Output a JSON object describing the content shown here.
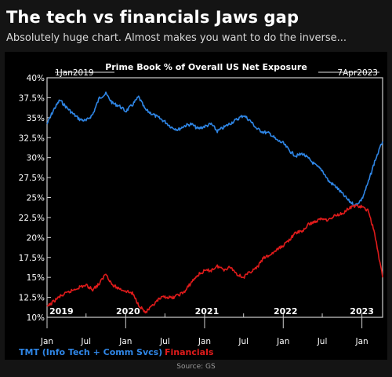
{
  "header": {
    "headline": "The tech vs financials Jaws gap",
    "subtitle": "Absolutely huge chart. Almost makes you want to do the inverse..."
  },
  "footer": {
    "source": "Source: GS"
  },
  "chart_data": {
    "type": "line",
    "title": "Prime Book % of Overall US Net Exposure",
    "start_label": "1Jan2019",
    "end_label": "7Apr2023",
    "x_range": [
      "2019-01-01",
      "2023-04-07"
    ],
    "ylim": [
      10,
      40
    ],
    "y_ticks": [
      "40%",
      "37.5%",
      "35%",
      "32.5%",
      "30%",
      "27.5%",
      "25%",
      "22.5%",
      "20%",
      "17.5%",
      "15%",
      "12.5%",
      "10%"
    ],
    "x_month_ticks": [
      {
        "date": "2019-01-01",
        "label": "Jan"
      },
      {
        "date": "2019-07-01",
        "label": "Jul"
      },
      {
        "date": "2020-01-01",
        "label": "Jan"
      },
      {
        "date": "2020-07-01",
        "label": "Jul"
      },
      {
        "date": "2021-01-01",
        "label": "Jan"
      },
      {
        "date": "2021-07-01",
        "label": "Jul"
      },
      {
        "date": "2022-01-01",
        "label": "Jan"
      },
      {
        "date": "2022-07-01",
        "label": "Jul"
      },
      {
        "date": "2023-01-01",
        "label": "Jan"
      }
    ],
    "year_labels": [
      {
        "date": "2019-01-01",
        "label": "2019"
      },
      {
        "date": "2020-01-01",
        "label": "2020"
      },
      {
        "date": "2021-01-01",
        "label": "2021"
      },
      {
        "date": "2022-01-01",
        "label": "2022"
      },
      {
        "date": "2023-01-01",
        "label": "2023"
      }
    ],
    "legend_position": "bottom-left",
    "series": [
      {
        "name": "TMT (Info Tech + Comm Svcs)",
        "color": "#2f86e6",
        "points": [
          [
            "2019-01-01",
            34.2
          ],
          [
            "2019-02-01",
            36.0
          ],
          [
            "2019-03-01",
            37.2
          ],
          [
            "2019-04-01",
            36.3
          ],
          [
            "2019-05-01",
            35.5
          ],
          [
            "2019-06-01",
            34.8
          ],
          [
            "2019-07-01",
            34.6
          ],
          [
            "2019-08-01",
            35.4
          ],
          [
            "2019-09-01",
            37.5
          ],
          [
            "2019-10-01",
            38.0
          ],
          [
            "2019-11-01",
            36.8
          ],
          [
            "2019-12-01",
            36.5
          ],
          [
            "2020-01-01",
            35.8
          ],
          [
            "2020-02-01",
            36.6
          ],
          [
            "2020-03-01",
            37.6
          ],
          [
            "2020-04-01",
            36.0
          ],
          [
            "2020-05-01",
            35.5
          ],
          [
            "2020-06-01",
            35.0
          ],
          [
            "2020-07-01",
            34.5
          ],
          [
            "2020-08-01",
            33.8
          ],
          [
            "2020-09-01",
            33.5
          ],
          [
            "2020-10-01",
            34.0
          ],
          [
            "2020-11-01",
            34.2
          ],
          [
            "2020-12-01",
            33.6
          ],
          [
            "2021-01-01",
            33.9
          ],
          [
            "2021-02-01",
            34.2
          ],
          [
            "2021-03-01",
            33.3
          ],
          [
            "2021-04-01",
            33.8
          ],
          [
            "2021-05-01",
            34.3
          ],
          [
            "2021-06-01",
            34.8
          ],
          [
            "2021-07-01",
            35.3
          ],
          [
            "2021-08-01",
            34.6
          ],
          [
            "2021-09-01",
            33.6
          ],
          [
            "2021-10-01",
            33.2
          ],
          [
            "2021-11-01",
            33.0
          ],
          [
            "2021-12-01",
            32.2
          ],
          [
            "2022-01-01",
            31.8
          ],
          [
            "2022-02-01",
            30.8
          ],
          [
            "2022-03-01",
            30.2
          ],
          [
            "2022-04-01",
            30.5
          ],
          [
            "2022-05-01",
            29.8
          ],
          [
            "2022-06-01",
            29.0
          ],
          [
            "2022-07-01",
            28.4
          ],
          [
            "2022-08-01",
            27.0
          ],
          [
            "2022-09-01",
            26.4
          ],
          [
            "2022-10-01",
            25.5
          ],
          [
            "2022-11-01",
            24.6
          ],
          [
            "2022-12-01",
            24.0
          ],
          [
            "2023-01-01",
            24.8
          ],
          [
            "2023-02-01",
            27.0
          ],
          [
            "2023-03-01",
            29.5
          ],
          [
            "2023-04-07",
            32.0
          ]
        ]
      },
      {
        "name": "Financials",
        "color": "#e01b1b",
        "points": [
          [
            "2019-01-01",
            11.3
          ],
          [
            "2019-02-01",
            12.0
          ],
          [
            "2019-03-01",
            12.6
          ],
          [
            "2019-04-01",
            13.0
          ],
          [
            "2019-05-01",
            13.4
          ],
          [
            "2019-06-01",
            13.8
          ],
          [
            "2019-07-01",
            14.0
          ],
          [
            "2019-08-01",
            13.5
          ],
          [
            "2019-09-01",
            14.2
          ],
          [
            "2019-10-01",
            15.5
          ],
          [
            "2019-11-01",
            14.0
          ],
          [
            "2019-12-01",
            13.6
          ],
          [
            "2020-01-01",
            13.3
          ],
          [
            "2020-02-01",
            13.0
          ],
          [
            "2020-03-01",
            11.6
          ],
          [
            "2020-04-01",
            10.6
          ],
          [
            "2020-05-01",
            11.3
          ],
          [
            "2020-06-01",
            12.2
          ],
          [
            "2020-07-01",
            12.6
          ],
          [
            "2020-08-01",
            12.4
          ],
          [
            "2020-09-01",
            12.8
          ],
          [
            "2020-10-01",
            13.2
          ],
          [
            "2020-11-01",
            14.4
          ],
          [
            "2020-12-01",
            15.3
          ],
          [
            "2021-01-01",
            15.8
          ],
          [
            "2021-02-01",
            15.9
          ],
          [
            "2021-03-01",
            16.4
          ],
          [
            "2021-04-01",
            16.0
          ],
          [
            "2021-05-01",
            16.3
          ],
          [
            "2021-06-01",
            15.4
          ],
          [
            "2021-07-01",
            15.0
          ],
          [
            "2021-08-01",
            15.7
          ],
          [
            "2021-09-01",
            16.2
          ],
          [
            "2021-10-01",
            17.4
          ],
          [
            "2021-11-01",
            17.8
          ],
          [
            "2021-12-01",
            18.4
          ],
          [
            "2022-01-01",
            19.0
          ],
          [
            "2022-02-01",
            19.8
          ],
          [
            "2022-03-01",
            20.6
          ],
          [
            "2022-04-01",
            20.8
          ],
          [
            "2022-05-01",
            21.7
          ],
          [
            "2022-06-01",
            22.0
          ],
          [
            "2022-07-01",
            22.4
          ],
          [
            "2022-08-01",
            22.2
          ],
          [
            "2022-09-01",
            22.8
          ],
          [
            "2022-10-01",
            23.0
          ],
          [
            "2022-11-01",
            23.6
          ],
          [
            "2022-12-01",
            24.0
          ],
          [
            "2023-01-01",
            23.8
          ],
          [
            "2023-02-01",
            23.3
          ],
          [
            "2023-03-01",
            20.5
          ],
          [
            "2023-04-07",
            15.0
          ]
        ]
      }
    ]
  }
}
